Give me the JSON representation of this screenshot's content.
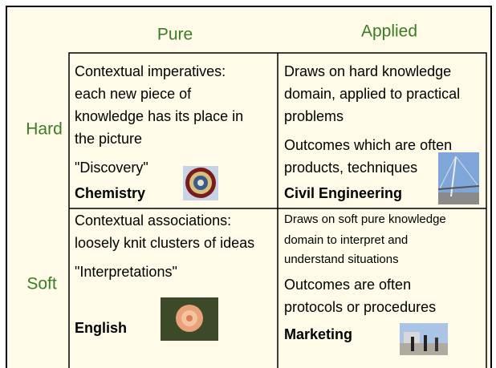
{
  "header": {
    "columns": [
      "Pure",
      "Applied"
    ]
  },
  "rows": [
    {
      "label": "Hard",
      "cells": [
        {
          "paragraphs": [
            [
              "Contextual imperatives:",
              "each new piece of",
              "knowledge has its place in",
              "the picture"
            ],
            [
              "\"Discovery\""
            ]
          ],
          "example": "Chemistry"
        },
        {
          "paragraphs": [
            [
              "Draws on hard knowledge",
              "domain, applied to practical",
              "problems"
            ],
            [
              "Outcomes which are often",
              "products, techniques"
            ]
          ],
          "example": "Civil Engineering"
        }
      ]
    },
    {
      "label": "Soft",
      "cells": [
        {
          "paragraphs": [
            [
              "Contextual associations:",
              "loosely knit clusters of ideas"
            ],
            [
              "\"Interpretations\""
            ]
          ],
          "example": "English"
        },
        {
          "paragraphs": [
            [
              "Draws on soft pure knowledge",
              "domain to interpret and",
              "understand situations"
            ],
            [
              "Outcomes are often",
              "protocols or procedures"
            ]
          ],
          "example": "Marketing"
        }
      ]
    }
  ]
}
